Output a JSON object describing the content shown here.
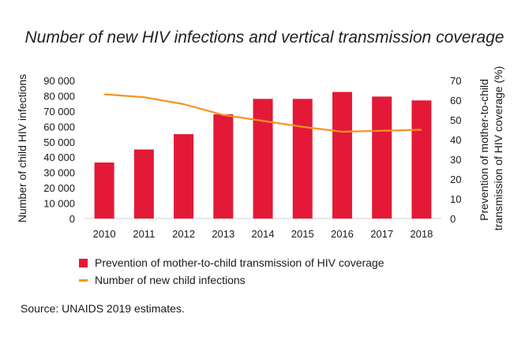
{
  "chart_data": {
    "type": "bar",
    "title": "Number of new HIV infections and vertical transmission coverage",
    "categories": [
      "2010",
      "2011",
      "2012",
      "2013",
      "2014",
      "2015",
      "2016",
      "2017",
      "2018"
    ],
    "series": [
      {
        "name": "Prevention of mother-to-child transmission of HIV coverage",
        "type": "bar",
        "axis": "left",
        "color": "#e31937",
        "values": [
          36500,
          45000,
          55000,
          68000,
          78000,
          78000,
          82500,
          79500,
          77000
        ]
      },
      {
        "name": "Number of new child infections",
        "type": "line",
        "axis": "right",
        "color": "#f7941d",
        "values": [
          63,
          61.5,
          58,
          52.5,
          49.5,
          46.5,
          44,
          44.5,
          45
        ]
      }
    ],
    "ylabel_left": "Number of child HIV infections",
    "ylabel_right": "Prevention of mother-to-child transmission of HIV coverage (%)",
    "ylabel_right_lines": [
      "Prevention of mother-to-child",
      "transmission of HIV coverage (%)"
    ],
    "ylim_left": [
      0,
      90000
    ],
    "ylim_right": [
      0,
      70
    ],
    "yticks_left": [
      "0",
      "10 000",
      "20 000",
      "30 000",
      "40 000",
      "50 000",
      "60 000",
      "70 000",
      "80 000",
      "90 000"
    ],
    "yticks_right": [
      "0",
      "10",
      "20",
      "30",
      "40",
      "50",
      "60",
      "70"
    ],
    "grid": false,
    "legend_position": "bottom-left"
  },
  "source": "Source: UNAIDS 2019 estimates."
}
